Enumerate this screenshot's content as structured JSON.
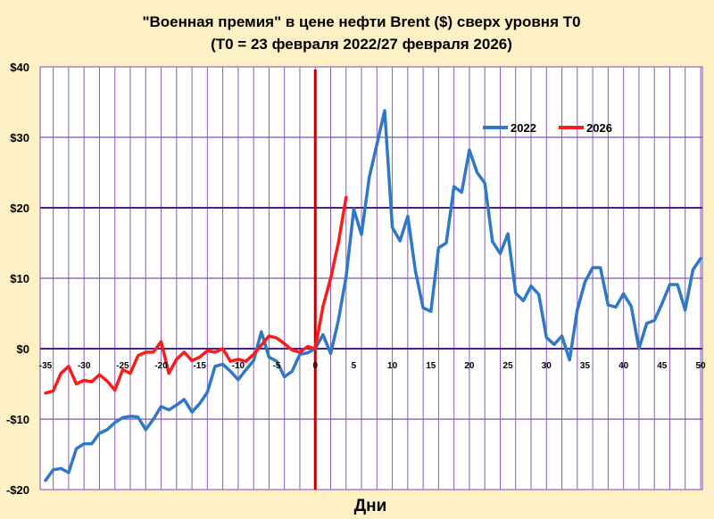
{
  "chart_data": {
    "type": "line",
    "title": "\"Военная премия\" в цене нефти Brent ($) сверх уровня Т0",
    "subtitle": "(Т0 = 23 февраля 2022/27 февраля 2026)",
    "xlabel": "Дни",
    "ylabel": "",
    "xlim": [
      -35,
      50
    ],
    "ylim": [
      -20,
      40
    ],
    "x_ticks": [
      -35,
      -30,
      -25,
      -20,
      -15,
      -10,
      -5,
      0,
      5,
      10,
      15,
      20,
      25,
      30,
      35,
      40,
      45,
      50
    ],
    "y_ticks": [
      {
        "value": 40,
        "label": "$40"
      },
      {
        "value": 30,
        "label": "$30"
      },
      {
        "value": 20,
        "label": "$20"
      },
      {
        "value": 10,
        "label": "$10"
      },
      {
        "value": 0,
        "label": "$0"
      },
      {
        "value": -10,
        "label": "-$10"
      },
      {
        "value": -20,
        "label": "-$20"
      }
    ],
    "grid": true,
    "legend_position": "top-right",
    "vline": {
      "x": 0,
      "color": "#c00000"
    },
    "series": [
      {
        "name": "2022",
        "color": "#2e78c7",
        "x": [
          -35,
          -34,
          -33,
          -32,
          -31,
          -30,
          -29,
          -28,
          -27,
          -26,
          -25,
          -24,
          -23,
          -22,
          -21,
          -20,
          -19,
          -18,
          -17,
          -16,
          -15,
          -14,
          -13,
          -12,
          -11,
          -10,
          -9,
          -8,
          -7,
          -6,
          -5,
          -4,
          -3,
          -2,
          -1,
          0,
          1,
          2,
          3,
          4,
          5,
          6,
          7,
          8,
          9,
          10,
          11,
          12,
          13,
          14,
          15,
          16,
          17,
          18,
          19,
          20,
          21,
          22,
          23,
          24,
          25,
          26,
          27,
          28,
          29,
          30,
          31,
          32,
          33,
          34,
          35,
          36,
          37,
          38,
          39,
          40,
          41,
          42,
          43,
          44,
          45,
          46,
          47,
          48,
          49,
          50
        ],
        "values": [
          -18.7,
          -17.2,
          -17.0,
          -17.6,
          -14.2,
          -13.5,
          -13.5,
          -12.0,
          -11.5,
          -10.5,
          -9.8,
          -9.6,
          -9.7,
          -11.5,
          -10.0,
          -8.2,
          -8.7,
          -8.0,
          -7.2,
          -9.0,
          -7.8,
          -6.2,
          -2.5,
          -2.2,
          -3.2,
          -4.4,
          -3.0,
          -1.7,
          2.4,
          -1.2,
          -1.8,
          -4.0,
          -3.2,
          -0.8,
          -0.6,
          0.0,
          2.0,
          -0.7,
          4.0,
          10.2,
          19.8,
          16.2,
          24.3,
          29.0,
          33.8,
          17.2,
          15.3,
          18.8,
          11.0,
          5.8,
          5.3,
          14.3,
          15.0,
          23.0,
          22.2,
          28.2,
          25.0,
          23.5,
          15.2,
          13.5,
          16.3,
          7.9,
          6.8,
          8.9,
          7.7,
          1.6,
          0.6,
          1.8,
          -1.6,
          5.5,
          9.5,
          11.5,
          11.5,
          6.2,
          5.9,
          7.8,
          6.0,
          0.0,
          3.6,
          4.0,
          6.4,
          9.1,
          9.1,
          5.5,
          11.2,
          12.8
        ]
      },
      {
        "name": "2026",
        "color": "#ff1a1a",
        "x": [
          -35,
          -34,
          -33,
          -32,
          -31,
          -30,
          -29,
          -28,
          -27,
          -26,
          -25,
          -24,
          -23,
          -22,
          -21,
          -20,
          -19,
          -18,
          -17,
          -16,
          -15,
          -14,
          -13,
          -12,
          -11,
          -10,
          -9,
          -8,
          -7,
          -6,
          -5,
          -4,
          -3,
          -2,
          -1,
          0,
          1,
          2,
          3,
          4
        ],
        "values": [
          -6.3,
          -6.0,
          -3.5,
          -2.5,
          -5.0,
          -4.5,
          -4.7,
          -3.7,
          -4.6,
          -5.9,
          -3.0,
          -3.5,
          -1.0,
          -0.5,
          -0.5,
          1.0,
          -3.5,
          -1.5,
          -0.5,
          -1.7,
          -1.2,
          -0.3,
          -0.5,
          0.0,
          -1.8,
          -1.5,
          -1.8,
          -0.8,
          0.5,
          1.8,
          1.5,
          0.7,
          -0.2,
          -0.5,
          0.3,
          0.0,
          6.0,
          10.0,
          15.0,
          21.5
        ]
      }
    ]
  }
}
